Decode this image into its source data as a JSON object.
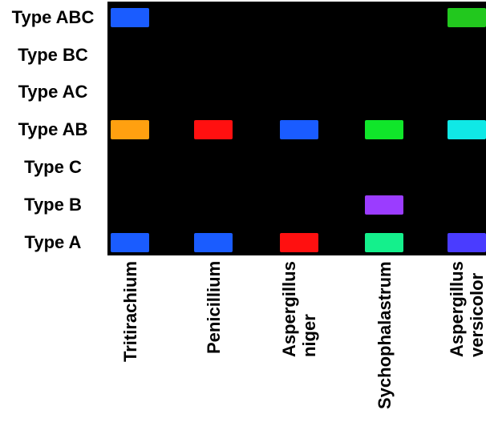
{
  "chart_data": {
    "type": "heatmap",
    "rows": [
      "Type ABC",
      "Type BC",
      "Type AC",
      "Type AB",
      "Type C",
      "Type B",
      "Type A"
    ],
    "columns": [
      [
        "Tritirachium"
      ],
      [
        "Penicillium"
      ],
      [
        "Aspergillus",
        "niger"
      ],
      [
        "Sychophalastrum"
      ],
      [
        "Aspergillus",
        "versicolor"
      ]
    ],
    "background": "#000000",
    "cells": [
      {
        "row": 0,
        "col": 0,
        "color": "#1a5cff"
      },
      {
        "row": 0,
        "col": 4,
        "color": "#22c81e"
      },
      {
        "row": 3,
        "col": 0,
        "color": "#ffa010"
      },
      {
        "row": 3,
        "col": 1,
        "color": "#ff1010"
      },
      {
        "row": 3,
        "col": 2,
        "color": "#1a5cff"
      },
      {
        "row": 3,
        "col": 3,
        "color": "#10e62a"
      },
      {
        "row": 3,
        "col": 4,
        "color": "#10e8e6"
      },
      {
        "row": 5,
        "col": 3,
        "color": "#9b3cff"
      },
      {
        "row": 6,
        "col": 0,
        "color": "#1a5cff"
      },
      {
        "row": 6,
        "col": 1,
        "color": "#1a5cff"
      },
      {
        "row": 6,
        "col": 2,
        "color": "#ff1010"
      },
      {
        "row": 6,
        "col": 3,
        "color": "#14f08c"
      },
      {
        "row": 6,
        "col": 4,
        "color": "#4a3cff"
      }
    ]
  }
}
